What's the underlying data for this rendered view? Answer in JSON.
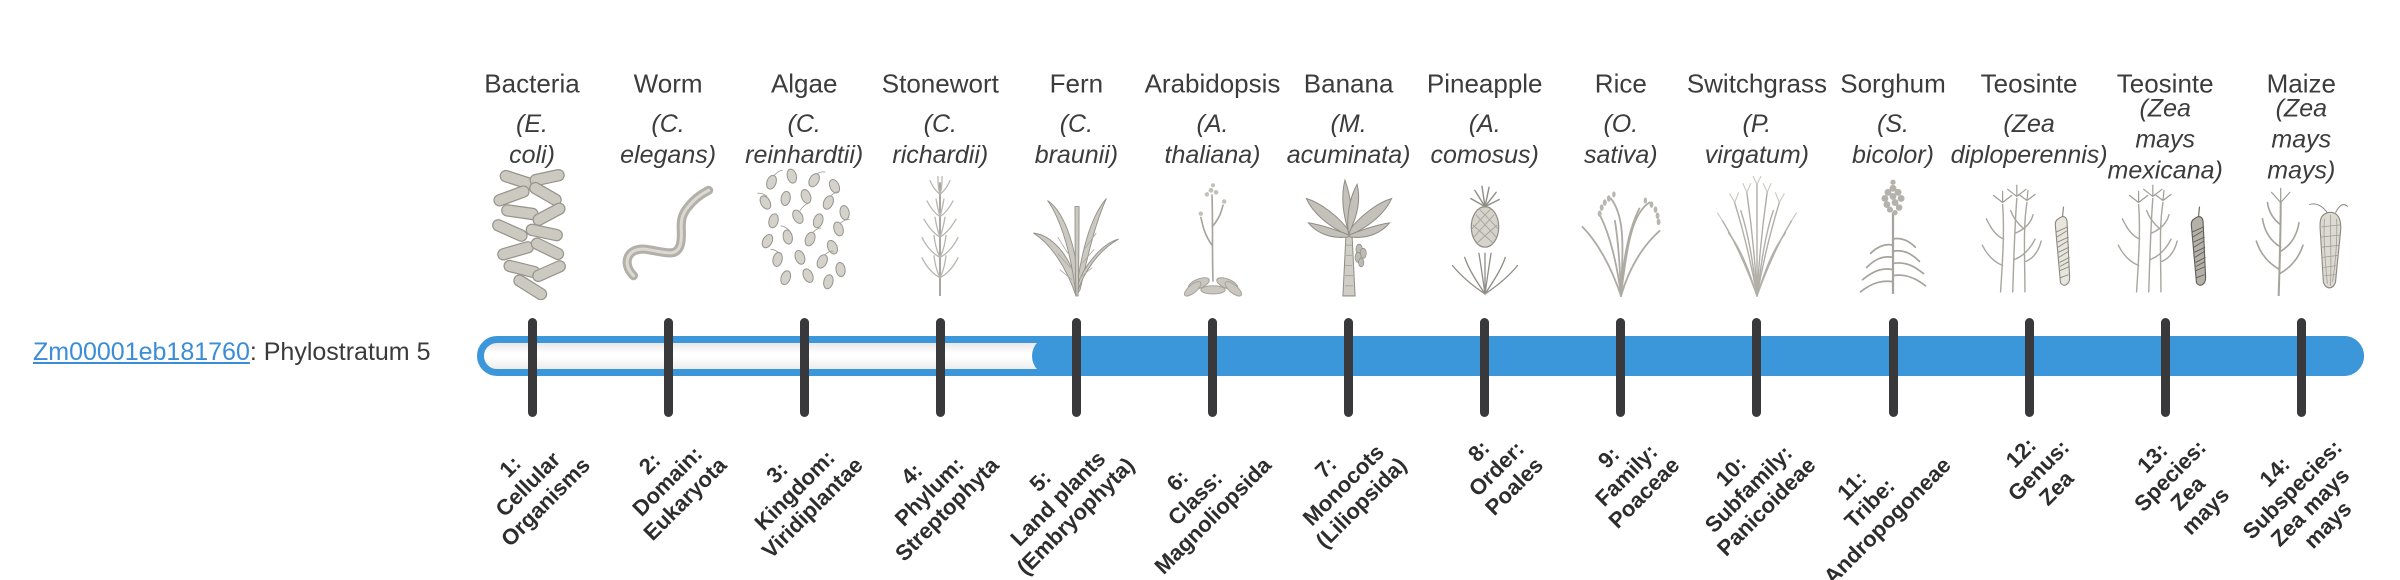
{
  "gene": {
    "id": "Zm00001eb181760",
    "suffix": ": Phylostratum 5",
    "phylostratum": "Phylostratum 5"
  },
  "bar": {
    "fill_start_stratum": 5,
    "total_strata": 14,
    "fill_color": "#3b97da",
    "outline_color": "#3b97da",
    "unfilled_color": "#f5f5f5",
    "tick_color": "#39393b"
  },
  "columns": [
    {
      "name": "Bacteria",
      "scientific": "(E. coli)",
      "icon": "bacteria-icon",
      "stratum_label": "1:\nCellular\nOrganisms"
    },
    {
      "name": "Worm",
      "scientific": "(C. elegans)",
      "icon": "worm-icon",
      "stratum_label": "2:\nDomain:\nEukaryota"
    },
    {
      "name": "Algae",
      "scientific": "(C.\nreinhardtii)",
      "icon": "algae-icon",
      "stratum_label": "3:\nKingdom:\nViridiplantae"
    },
    {
      "name": "Stonewort",
      "scientific": "(C. richardii)",
      "icon": "stonewort-icon",
      "stratum_label": "4:\nPhylum:\nStreptophyta"
    },
    {
      "name": "Fern",
      "scientific": "(C. braunii)",
      "icon": "fern-icon",
      "stratum_label": "5:\nLand plants\n(Embryophyta)"
    },
    {
      "name": "Arabidopsis",
      "scientific": "(A. thaliana)",
      "icon": "arabidopsis-icon",
      "stratum_label": "6:\nClass:\nMagnoliopsida"
    },
    {
      "name": "Banana",
      "scientific": "(M.\nacuminata)",
      "icon": "banana-icon",
      "stratum_label": "7:\nMonocots\n(Liliopsida)"
    },
    {
      "name": "Pineapple",
      "scientific": "(A.\ncomosus)",
      "icon": "pineapple-icon",
      "stratum_label": "8:\nOrder:\nPoales"
    },
    {
      "name": "Rice",
      "scientific": "(O. sativa)",
      "icon": "rice-icon",
      "stratum_label": "9:\nFamily:\nPoaceae"
    },
    {
      "name": "Switchgrass",
      "scientific": "(P.\nvirgatum)",
      "icon": "switchgrass-icon",
      "stratum_label": "10:\nSubfamily:\nPanicoideae"
    },
    {
      "name": "Sorghum",
      "scientific": "(S. bicolor)",
      "icon": "sorghum-icon",
      "stratum_label": "11:\nTribe:\nAndropogoneae"
    },
    {
      "name": "Teosinte",
      "scientific": "(Zea\ndiploperennis)",
      "icon": "teosinte-icon",
      "stratum_label": "12:\nGenus:\nZea"
    },
    {
      "name": "Teosinte",
      "scientific": "(Zea mays\nmexicana)",
      "icon": "teosinte-dark-icon",
      "stratum_label": "13:\nSpecies:\nZea\nmays"
    },
    {
      "name": "Maize",
      "scientific": "(Zea mays\nmays)",
      "icon": "maize-icon",
      "stratum_label": "14:\nSubspecies:\nZea mays\nmays"
    }
  ]
}
